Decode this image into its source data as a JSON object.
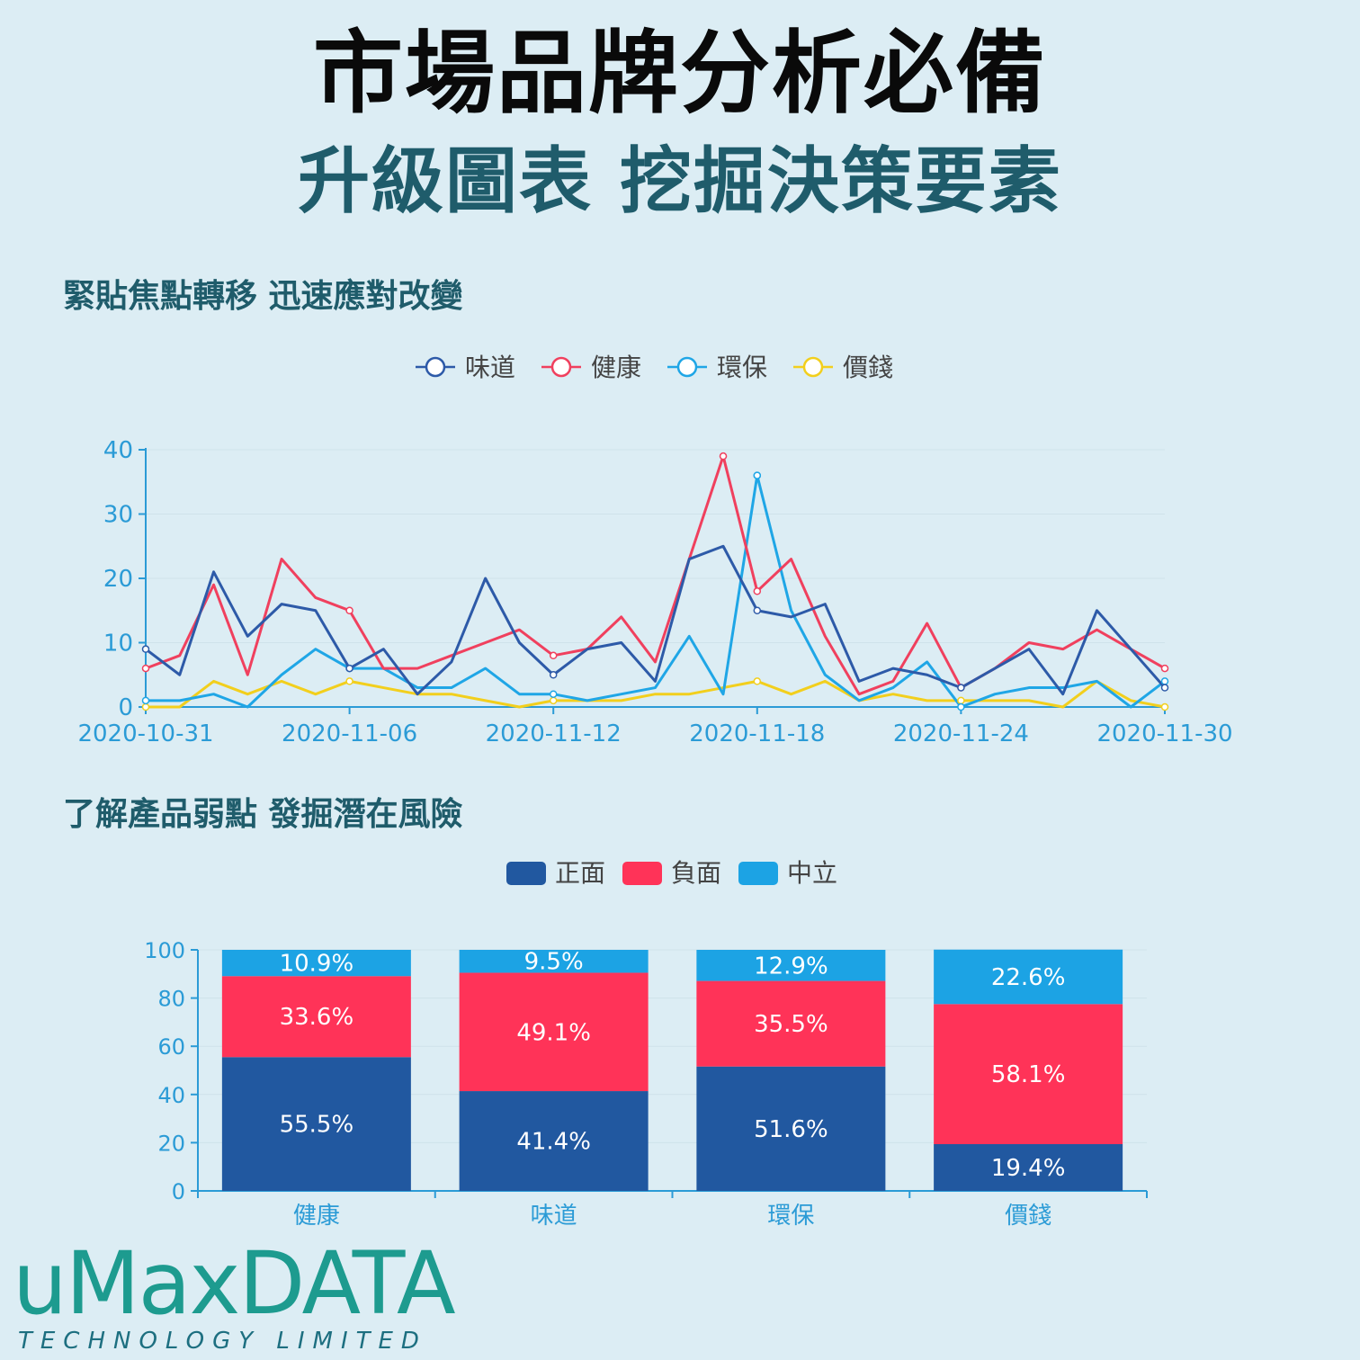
{
  "header": {
    "title": "市場品牌分析必備",
    "subtitle": "升級圖表 挖掘決策要素"
  },
  "line_section": {
    "heading": "緊貼焦點轉移 迅速應對改變"
  },
  "bar_section": {
    "heading": "了解產品弱點 發掘潛在風險"
  },
  "logo": {
    "main": "uMaxDATA",
    "sub": "TECHNOLOGY LIMITED"
  },
  "colors": {
    "background": "#dcedf4",
    "taste": "#2d5aa8",
    "health": "#f0405e",
    "eco": "#1fa6e6",
    "price": "#f2cf1d",
    "positive": "#2158a0",
    "negative": "#ff3358",
    "neutral": "#1ca3e4",
    "axis": "#2b9bd6"
  },
  "chart_data": [
    {
      "type": "line",
      "x": [
        "2020-10-31",
        "2020-11-01",
        "2020-11-02",
        "2020-11-03",
        "2020-11-04",
        "2020-11-05",
        "2020-11-06",
        "2020-11-07",
        "2020-11-08",
        "2020-11-09",
        "2020-11-10",
        "2020-11-11",
        "2020-11-12",
        "2020-11-13",
        "2020-11-14",
        "2020-11-15",
        "2020-11-16",
        "2020-11-17",
        "2020-11-18",
        "2020-11-19",
        "2020-11-20",
        "2020-11-21",
        "2020-11-22",
        "2020-11-23",
        "2020-11-24",
        "2020-11-25",
        "2020-11-26",
        "2020-11-27",
        "2020-11-28",
        "2020-11-29",
        "2020-11-30"
      ],
      "x_tick_labels": [
        "2020-10-31",
        "2020-11-06",
        "2020-11-12",
        "2020-11-18",
        "2020-11-24",
        "2020-11-30"
      ],
      "ylim": [
        0,
        40
      ],
      "y_ticks": [
        0,
        10,
        20,
        30,
        40
      ],
      "legend_position": "top-center",
      "grid": true,
      "series": [
        {
          "name": "味道",
          "color": "#2d5aa8",
          "values": [
            9,
            5,
            21,
            11,
            16,
            15,
            6,
            9,
            2,
            7,
            20,
            10,
            5,
            9,
            10,
            4,
            23,
            25,
            15,
            14,
            16,
            4,
            6,
            5,
            3,
            6,
            9,
            2,
            15,
            9,
            3
          ]
        },
        {
          "name": "健康",
          "color": "#f0405e",
          "values": [
            6,
            8,
            19,
            5,
            23,
            17,
            15,
            6,
            6,
            8,
            10,
            12,
            8,
            9,
            14,
            7,
            23,
            39,
            18,
            23,
            11,
            2,
            4,
            13,
            3,
            6,
            10,
            9,
            12,
            9,
            6
          ]
        },
        {
          "name": "環保",
          "color": "#1fa6e6",
          "values": [
            1,
            1,
            2,
            0,
            5,
            9,
            6,
            6,
            3,
            3,
            6,
            2,
            2,
            1,
            2,
            3,
            11,
            2,
            36,
            15,
            5,
            1,
            3,
            7,
            0,
            2,
            3,
            3,
            4,
            0,
            4
          ]
        },
        {
          "name": "價錢",
          "color": "#f2cf1d",
          "values": [
            0,
            0,
            4,
            2,
            4,
            2,
            4,
            3,
            2,
            2,
            1,
            0,
            1,
            1,
            1,
            2,
            2,
            3,
            4,
            2,
            4,
            1,
            2,
            1,
            1,
            1,
            1,
            0,
            4,
            1,
            0
          ]
        }
      ]
    },
    {
      "type": "bar",
      "stacked": true,
      "categories": [
        "健康",
        "味道",
        "環保",
        "價錢"
      ],
      "ylim": [
        0,
        100
      ],
      "y_ticks": [
        0,
        20,
        40,
        60,
        80,
        100
      ],
      "legend_position": "top-center",
      "grid": true,
      "series": [
        {
          "name": "正面",
          "color": "#2158a0",
          "values": [
            55.5,
            41.4,
            51.6,
            19.4
          ],
          "labels": [
            "55.5%",
            "41.4%",
            "51.6%",
            "19.4%"
          ]
        },
        {
          "name": "負面",
          "color": "#ff3358",
          "values": [
            33.6,
            49.1,
            35.5,
            58.1
          ],
          "labels": [
            "33.6%",
            "49.1%",
            "35.5%",
            "58.1%"
          ]
        },
        {
          "name": "中立",
          "color": "#1ca3e4",
          "values": [
            10.9,
            9.5,
            12.9,
            22.6
          ],
          "labels": [
            "10.9%",
            "9.5%",
            "12.9%",
            "22.6%"
          ]
        }
      ]
    }
  ]
}
